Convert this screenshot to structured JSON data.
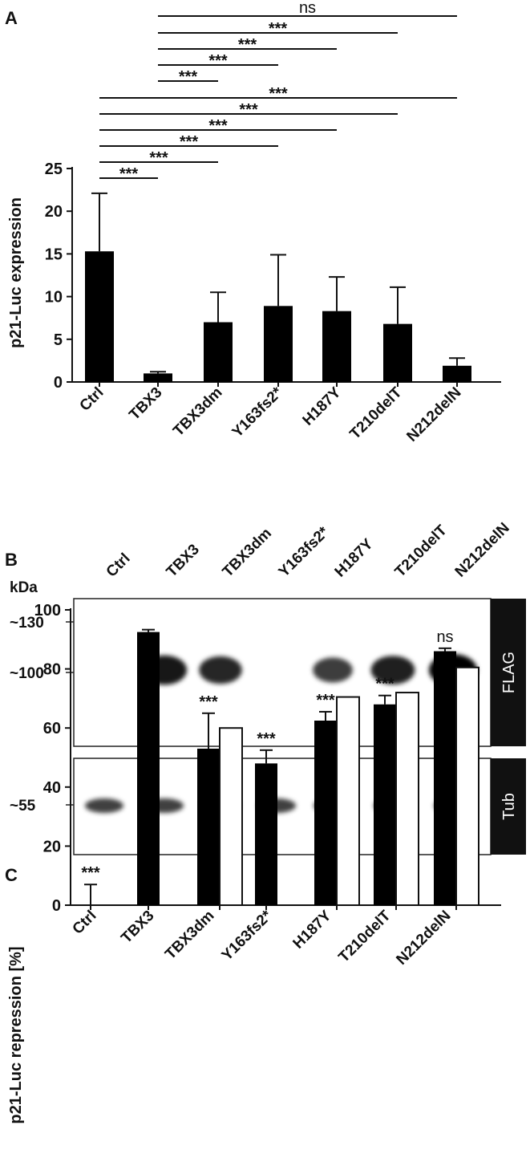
{
  "panels": {
    "a": "A",
    "b": "B",
    "c": "C"
  },
  "chart_data": [
    {
      "type": "bar",
      "categories": [
        "Ctrl",
        "TBX3",
        "TBX3dm",
        "Y163fs2*",
        "H187Y",
        "T210delT",
        "N212delN"
      ],
      "series": [
        {
          "values": [
            15.3,
            1.0,
            7.0,
            8.9,
            8.3,
            6.8,
            1.9
          ],
          "error": [
            6.8,
            0.2,
            3.5,
            6.0,
            4.0,
            4.3,
            0.9
          ]
        }
      ],
      "xlabel": "",
      "ylabel": "p21-Luc expression",
      "ylim": [
        0,
        25
      ],
      "yticks": [
        0,
        5,
        10,
        15,
        20,
        25
      ],
      "comparisons": [
        {
          "from": "TBX3",
          "to": "N212delN",
          "label": "ns"
        },
        {
          "from": "TBX3",
          "to": "T210delT",
          "label": "***"
        },
        {
          "from": "TBX3",
          "to": "H187Y",
          "label": "***"
        },
        {
          "from": "TBX3",
          "to": "Y163fs2*",
          "label": "***"
        },
        {
          "from": "TBX3",
          "to": "TBX3dm",
          "label": "***"
        },
        {
          "from": "Ctrl",
          "to": "N212delN",
          "label": "***"
        },
        {
          "from": "Ctrl",
          "to": "T210delT",
          "label": "***"
        },
        {
          "from": "Ctrl",
          "to": "H187Y",
          "label": "***"
        },
        {
          "from": "Ctrl",
          "to": "Y163fs2*",
          "label": "***"
        },
        {
          "from": "Ctrl",
          "to": "TBX3dm",
          "label": "***"
        },
        {
          "from": "Ctrl",
          "to": "TBX3",
          "label": "***"
        }
      ]
    },
    {
      "type": "bar",
      "categories": [
        "Ctrl",
        "TBX3",
        "TBX3dm",
        "Y163fs2*",
        "H187Y",
        "T210delT",
        "N212delN"
      ],
      "series": [
        {
          "fill": "#000000",
          "values": [
            0,
            92.5,
            53,
            48,
            62.5,
            68,
            86
          ],
          "error": [
            7,
            0.8,
            12,
            4.5,
            3,
            3,
            1
          ]
        },
        {
          "fill": "#ffffff",
          "values": [
            null,
            null,
            60,
            null,
            70.5,
            72,
            80.5
          ]
        }
      ],
      "annotations": [
        "***",
        "",
        "***",
        "***",
        "***",
        "***",
        "ns"
      ],
      "xlabel": "",
      "ylabel": "p21-Luc repression [%]",
      "ylim": [
        0,
        100
      ],
      "yticks": [
        0,
        20,
        40,
        60,
        80,
        100
      ]
    }
  ],
  "blot": {
    "lanes": [
      "Ctrl",
      "TBX3",
      "TBX3dm",
      "Y163fs2*",
      "H187Y",
      "T210delT",
      "N212delN"
    ],
    "unit": "kDa",
    "markers": [
      "~130",
      "~100",
      "~55"
    ],
    "tags": [
      "FLAG",
      "Tub"
    ],
    "flag_band_intensity": [
      0,
      0.85,
      0.75,
      0,
      0.6,
      0.8,
      1.0
    ],
    "tub_band_intensity": [
      0.75,
      0.75,
      0.8,
      0.75,
      0.75,
      0.75,
      0.7
    ]
  }
}
